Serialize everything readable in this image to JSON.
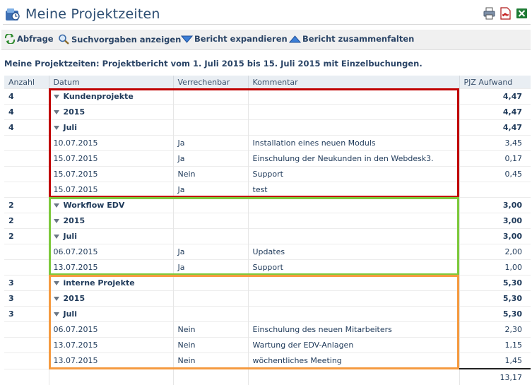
{
  "header": {
    "title": "Meine Projektzeiten"
  },
  "top_actions": [
    {
      "name": "print-icon"
    },
    {
      "name": "pdf-icon"
    },
    {
      "name": "excel-icon"
    }
  ],
  "toolbar": {
    "abfrage": "Abfrage",
    "suchvorgaben": "Suchvorgaben anzeigen",
    "expand": "Bericht expandieren",
    "collapse": "Bericht zusammenfalten"
  },
  "report_title": "Meine Projektzeiten: Projektbericht vom 1. Juli 2015 bis 15. Juli 2015 mit Einzelbuchungen.",
  "columns": {
    "anzahl": "Anzahl",
    "datum": "Datum",
    "verrechenbar": "Verrechenbar",
    "kommentar": "Kommentar",
    "aufwand": "PJZ Aufwand"
  },
  "groups": [
    {
      "color": "#c00000",
      "rows": [
        {
          "level": 1,
          "count": "4",
          "label": "Kundenprojekte",
          "value": "4,47"
        },
        {
          "level": 2,
          "count": "4",
          "label": "2015",
          "value": "4,47"
        },
        {
          "level": 3,
          "count": "4",
          "label": "Juli",
          "value": "4,47"
        },
        {
          "level": 4,
          "date": "10.07.2015",
          "billable": "Ja",
          "comment": "Installation eines neuen Moduls",
          "value": "3,45"
        },
        {
          "level": 4,
          "date": "15.07.2015",
          "billable": "Ja",
          "comment": "Einschulung der Neukunden in den Webdesk3.",
          "value": "0,17"
        },
        {
          "level": 4,
          "date": "15.07.2015",
          "billable": "Nein",
          "comment": "Support",
          "value": "0,45"
        },
        {
          "level": 4,
          "date": "15.07.2015",
          "billable": "Ja",
          "comment": "test",
          "value": ""
        }
      ]
    },
    {
      "color": "#7dc93c",
      "rows": [
        {
          "level": 1,
          "count": "2",
          "label": "Workflow EDV",
          "value": "3,00"
        },
        {
          "level": 2,
          "count": "2",
          "label": "2015",
          "value": "3,00"
        },
        {
          "level": 3,
          "count": "2",
          "label": "Juli",
          "value": "3,00"
        },
        {
          "level": 4,
          "date": "06.07.2015",
          "billable": "Ja",
          "comment": "Updates",
          "value": "2,00"
        },
        {
          "level": 4,
          "date": "13.07.2015",
          "billable": "Ja",
          "comment": "Support",
          "value": "1,00"
        }
      ]
    },
    {
      "color": "#f59a40",
      "rows": [
        {
          "level": 1,
          "count": "3",
          "label": "interne Projekte",
          "value": "5,30"
        },
        {
          "level": 2,
          "count": "3",
          "label": "2015",
          "value": "5,30"
        },
        {
          "level": 3,
          "count": "3",
          "label": "Juli",
          "value": "5,30"
        },
        {
          "level": 4,
          "date": "06.07.2015",
          "billable": "Nein",
          "comment": "Einschulung des neuen Mitarbeiters",
          "value": "2,30"
        },
        {
          "level": 4,
          "date": "13.07.2015",
          "billable": "Nein",
          "comment": "Wartung der EDV-Anlagen",
          "value": "1,15"
        },
        {
          "level": 4,
          "date": "13.07.2015",
          "billable": "Nein",
          "comment": "wöchentliches Meeting",
          "value": "1,45"
        }
      ]
    }
  ],
  "total": "13,17"
}
